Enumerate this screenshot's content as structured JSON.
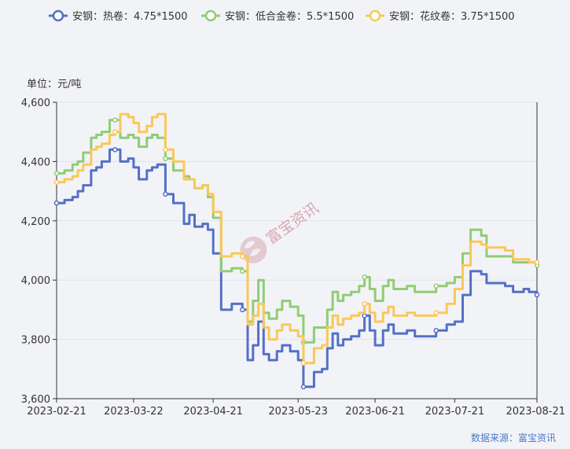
{
  "chart_data": {
    "type": "line",
    "ylabel": "单位：元/吨",
    "ylim": [
      3600,
      4600
    ],
    "yticks": [
      "3,600",
      "3,800",
      "4,000",
      "4,200",
      "4,400",
      "4,600"
    ],
    "ytick_values": [
      3600,
      3800,
      4000,
      4200,
      4400,
      4600
    ],
    "xticks": [
      "2023-02-21",
      "2023-03-22",
      "2023-04-21",
      "2023-05-23",
      "2023-06-21",
      "2023-07-21",
      "2023-08-21"
    ],
    "x_range": [
      "2023-02-21",
      "2023-08-21"
    ],
    "grid": true,
    "legend_position": "top",
    "series": [
      {
        "name": "安钢：热卷：4.75*1500",
        "color": "#5470c6",
        "points": [
          [
            "2023-02-21",
            4260
          ],
          [
            "2023-02-24",
            4270
          ],
          [
            "2023-02-27",
            4280
          ],
          [
            "2023-03-01",
            4300
          ],
          [
            "2023-03-03",
            4320
          ],
          [
            "2023-03-06",
            4370
          ],
          [
            "2023-03-08",
            4380
          ],
          [
            "2023-03-10",
            4400
          ],
          [
            "2023-03-13",
            4440
          ],
          [
            "2023-03-15",
            4440
          ],
          [
            "2023-03-17",
            4400
          ],
          [
            "2023-03-20",
            4410
          ],
          [
            "2023-03-22",
            4380
          ],
          [
            "2023-03-24",
            4340
          ],
          [
            "2023-03-27",
            4370
          ],
          [
            "2023-03-29",
            4380
          ],
          [
            "2023-03-31",
            4390
          ],
          [
            "2023-04-03",
            4290
          ],
          [
            "2023-04-06",
            4260
          ],
          [
            "2023-04-10",
            4190
          ],
          [
            "2023-04-12",
            4220
          ],
          [
            "2023-04-14",
            4180
          ],
          [
            "2023-04-17",
            4190
          ],
          [
            "2023-04-19",
            4170
          ],
          [
            "2023-04-21",
            4090
          ],
          [
            "2023-04-24",
            3900
          ],
          [
            "2023-04-26",
            3900
          ],
          [
            "2023-04-28",
            3920
          ],
          [
            "2023-05-02",
            3900
          ],
          [
            "2023-05-04",
            3730
          ],
          [
            "2023-05-06",
            3780
          ],
          [
            "2023-05-08",
            3860
          ],
          [
            "2023-05-10",
            3750
          ],
          [
            "2023-05-12",
            3730
          ],
          [
            "2023-05-15",
            3760
          ],
          [
            "2023-05-17",
            3780
          ],
          [
            "2023-05-20",
            3760
          ],
          [
            "2023-05-23",
            3730
          ],
          [
            "2023-05-25",
            3640
          ],
          [
            "2023-05-29",
            3690
          ],
          [
            "2023-06-01",
            3700
          ],
          [
            "2023-06-03",
            3770
          ],
          [
            "2023-06-05",
            3820
          ],
          [
            "2023-06-07",
            3780
          ],
          [
            "2023-06-09",
            3800
          ],
          [
            "2023-06-12",
            3810
          ],
          [
            "2023-06-15",
            3830
          ],
          [
            "2023-06-17",
            3880
          ],
          [
            "2023-06-19",
            3830
          ],
          [
            "2023-06-21",
            3780
          ],
          [
            "2023-06-24",
            3830
          ],
          [
            "2023-06-26",
            3850
          ],
          [
            "2023-06-28",
            3820
          ],
          [
            "2023-07-03",
            3830
          ],
          [
            "2023-07-06",
            3810
          ],
          [
            "2023-07-11",
            3810
          ],
          [
            "2023-07-14",
            3830
          ],
          [
            "2023-07-18",
            3850
          ],
          [
            "2023-07-21",
            3860
          ],
          [
            "2023-07-24",
            3950
          ],
          [
            "2023-07-27",
            4030
          ],
          [
            "2023-07-31",
            4020
          ],
          [
            "2023-08-02",
            3990
          ],
          [
            "2023-08-05",
            3990
          ],
          [
            "2023-08-09",
            3980
          ],
          [
            "2023-08-12",
            3960
          ],
          [
            "2023-08-16",
            3970
          ],
          [
            "2023-08-18",
            3960
          ],
          [
            "2023-08-21",
            3950
          ]
        ]
      },
      {
        "name": "安钢：低合金卷：5.5*1500",
        "color": "#91cc75",
        "points": [
          [
            "2023-02-21",
            4360
          ],
          [
            "2023-02-24",
            4370
          ],
          [
            "2023-02-27",
            4390
          ],
          [
            "2023-03-01",
            4400
          ],
          [
            "2023-03-03",
            4430
          ],
          [
            "2023-03-06",
            4480
          ],
          [
            "2023-03-08",
            4490
          ],
          [
            "2023-03-10",
            4500
          ],
          [
            "2023-03-13",
            4540
          ],
          [
            "2023-03-15",
            4540
          ],
          [
            "2023-03-17",
            4480
          ],
          [
            "2023-03-20",
            4490
          ],
          [
            "2023-03-22",
            4480
          ],
          [
            "2023-03-24",
            4450
          ],
          [
            "2023-03-27",
            4480
          ],
          [
            "2023-03-29",
            4490
          ],
          [
            "2023-03-31",
            4480
          ],
          [
            "2023-04-03",
            4410
          ],
          [
            "2023-04-06",
            4370
          ],
          [
            "2023-04-10",
            4350
          ],
          [
            "2023-04-12",
            4340
          ],
          [
            "2023-04-14",
            4310
          ],
          [
            "2023-04-17",
            4320
          ],
          [
            "2023-04-19",
            4280
          ],
          [
            "2023-04-21",
            4210
          ],
          [
            "2023-04-24",
            4030
          ],
          [
            "2023-04-26",
            4030
          ],
          [
            "2023-04-28",
            4040
          ],
          [
            "2023-05-02",
            4030
          ],
          [
            "2023-05-04",
            3860
          ],
          [
            "2023-05-06",
            3930
          ],
          [
            "2023-05-08",
            4000
          ],
          [
            "2023-05-10",
            3890
          ],
          [
            "2023-05-12",
            3870
          ],
          [
            "2023-05-15",
            3900
          ],
          [
            "2023-05-17",
            3930
          ],
          [
            "2023-05-20",
            3910
          ],
          [
            "2023-05-23",
            3880
          ],
          [
            "2023-05-25",
            3790
          ],
          [
            "2023-05-29",
            3840
          ],
          [
            "2023-06-01",
            3840
          ],
          [
            "2023-06-03",
            3900
          ],
          [
            "2023-06-05",
            3960
          ],
          [
            "2023-06-07",
            3930
          ],
          [
            "2023-06-09",
            3950
          ],
          [
            "2023-06-12",
            3960
          ],
          [
            "2023-06-15",
            3980
          ],
          [
            "2023-06-17",
            4010
          ],
          [
            "2023-06-19",
            3970
          ],
          [
            "2023-06-21",
            3930
          ],
          [
            "2023-06-24",
            3980
          ],
          [
            "2023-06-26",
            4000
          ],
          [
            "2023-06-28",
            3970
          ],
          [
            "2023-07-03",
            3980
          ],
          [
            "2023-07-06",
            3960
          ],
          [
            "2023-07-11",
            3960
          ],
          [
            "2023-07-14",
            3980
          ],
          [
            "2023-07-18",
            3990
          ],
          [
            "2023-07-21",
            4010
          ],
          [
            "2023-07-24",
            4090
          ],
          [
            "2023-07-27",
            4170
          ],
          [
            "2023-07-31",
            4150
          ],
          [
            "2023-08-02",
            4080
          ],
          [
            "2023-08-05",
            4080
          ],
          [
            "2023-08-09",
            4080
          ],
          [
            "2023-08-12",
            4060
          ],
          [
            "2023-08-16",
            4060
          ],
          [
            "2023-08-18",
            4060
          ],
          [
            "2023-08-21",
            4050
          ]
        ]
      },
      {
        "name": "安钢：花纹卷：3.75*1500",
        "color": "#fac858",
        "points": [
          [
            "2023-02-21",
            4330
          ],
          [
            "2023-02-24",
            4340
          ],
          [
            "2023-02-27",
            4350
          ],
          [
            "2023-03-01",
            4370
          ],
          [
            "2023-03-03",
            4390
          ],
          [
            "2023-03-06",
            4440
          ],
          [
            "2023-03-08",
            4450
          ],
          [
            "2023-03-10",
            4460
          ],
          [
            "2023-03-13",
            4490
          ],
          [
            "2023-03-15",
            4500
          ],
          [
            "2023-03-17",
            4560
          ],
          [
            "2023-03-20",
            4550
          ],
          [
            "2023-03-22",
            4530
          ],
          [
            "2023-03-24",
            4500
          ],
          [
            "2023-03-27",
            4520
          ],
          [
            "2023-03-29",
            4550
          ],
          [
            "2023-03-31",
            4560
          ],
          [
            "2023-04-03",
            4440
          ],
          [
            "2023-04-06",
            4400
          ],
          [
            "2023-04-10",
            4340
          ],
          [
            "2023-04-12",
            4340
          ],
          [
            "2023-04-14",
            4310
          ],
          [
            "2023-04-17",
            4320
          ],
          [
            "2023-04-19",
            4290
          ],
          [
            "2023-04-21",
            4230
          ],
          [
            "2023-04-24",
            4080
          ],
          [
            "2023-04-26",
            4080
          ],
          [
            "2023-04-28",
            4090
          ],
          [
            "2023-05-02",
            4080
          ],
          [
            "2023-05-04",
            3850
          ],
          [
            "2023-05-06",
            3880
          ],
          [
            "2023-05-08",
            3920
          ],
          [
            "2023-05-10",
            3840
          ],
          [
            "2023-05-12",
            3800
          ],
          [
            "2023-05-15",
            3830
          ],
          [
            "2023-05-17",
            3850
          ],
          [
            "2023-05-20",
            3830
          ],
          [
            "2023-05-23",
            3810
          ],
          [
            "2023-05-25",
            3720
          ],
          [
            "2023-05-29",
            3770
          ],
          [
            "2023-06-01",
            3780
          ],
          [
            "2023-06-03",
            3840
          ],
          [
            "2023-06-05",
            3880
          ],
          [
            "2023-06-07",
            3850
          ],
          [
            "2023-06-09",
            3870
          ],
          [
            "2023-06-12",
            3880
          ],
          [
            "2023-06-15",
            3890
          ],
          [
            "2023-06-17",
            3920
          ],
          [
            "2023-06-19",
            3890
          ],
          [
            "2023-06-21",
            3860
          ],
          [
            "2023-06-24",
            3890
          ],
          [
            "2023-06-26",
            3910
          ],
          [
            "2023-06-28",
            3880
          ],
          [
            "2023-07-03",
            3890
          ],
          [
            "2023-07-06",
            3880
          ],
          [
            "2023-07-11",
            3880
          ],
          [
            "2023-07-14",
            3890
          ],
          [
            "2023-07-18",
            3920
          ],
          [
            "2023-07-21",
            3970
          ],
          [
            "2023-07-24",
            4050
          ],
          [
            "2023-07-27",
            4130
          ],
          [
            "2023-07-31",
            4120
          ],
          [
            "2023-08-02",
            4110
          ],
          [
            "2023-08-05",
            4110
          ],
          [
            "2023-08-09",
            4100
          ],
          [
            "2023-08-12",
            4070
          ],
          [
            "2023-08-16",
            4070
          ],
          [
            "2023-08-18",
            4060
          ],
          [
            "2023-08-21",
            4060
          ]
        ]
      }
    ]
  },
  "watermark": {
    "text": "富宝资讯",
    "logo_color": "#d7a7b0"
  },
  "source_text": "数据来源：富宝资讯"
}
